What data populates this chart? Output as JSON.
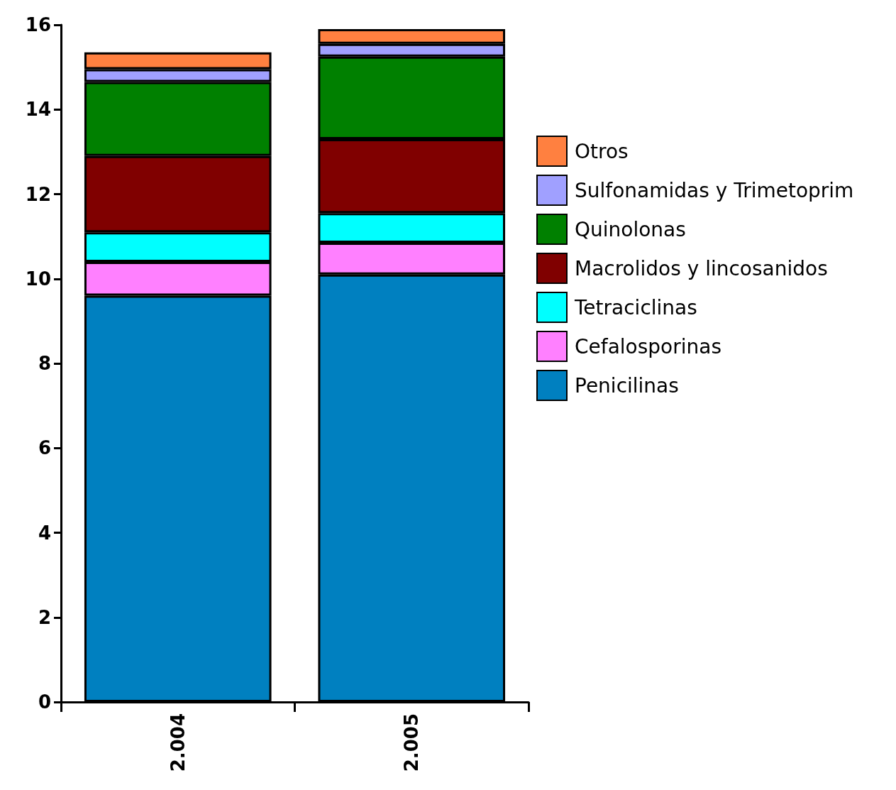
{
  "chart_data": {
    "type": "bar",
    "stacked": true,
    "categories": [
      "2.004",
      "2.005"
    ],
    "series": [
      {
        "name": "Penicilinas",
        "color": "#0080c0",
        "values": [
          9.6,
          10.1
        ]
      },
      {
        "name": "Cefalosporinas",
        "color": "#ff80ff",
        "values": [
          0.8,
          0.75
        ]
      },
      {
        "name": "Tetraciclinas",
        "color": "#00ffff",
        "values": [
          0.7,
          0.7
        ]
      },
      {
        "name": "Macrolidos y lincosanidos",
        "color": "#800000",
        "values": [
          1.8,
          1.75
        ]
      },
      {
        "name": "Quinolonas",
        "color": "#008000",
        "values": [
          1.75,
          1.95
        ]
      },
      {
        "name": "Sulfonamidas y Trimetoprim",
        "color": "#a0a0ff",
        "values": [
          0.3,
          0.3
        ]
      },
      {
        "name": "Otros",
        "color": "#ff8040",
        "values": [
          0.4,
          0.35
        ]
      }
    ],
    "ylim": [
      0,
      16
    ],
    "yticks": [
      0,
      2,
      4,
      6,
      8,
      10,
      12,
      14,
      16
    ],
    "grid": false,
    "legend": "right"
  }
}
